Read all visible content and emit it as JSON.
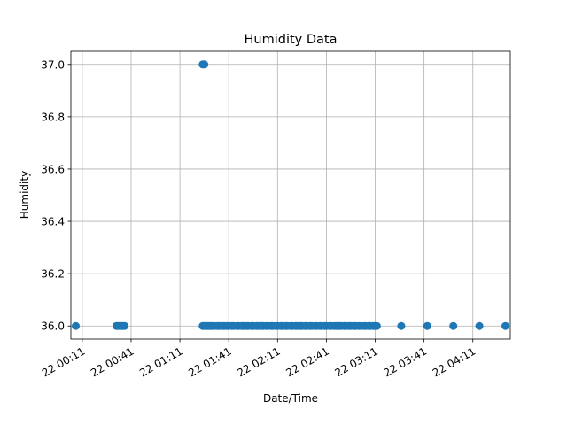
{
  "chart_data": {
    "type": "scatter",
    "title": "Humidity Data",
    "xlabel": "Date/Time",
    "ylabel": "Humidity",
    "ylim": [
      35.95,
      37.05
    ],
    "xlim": [
      "22 00:04",
      "22 04:34"
    ],
    "grid": true,
    "marker_color": "#1f77b4",
    "x_ticks": [
      "22 00:11",
      "22 00:41",
      "22 01:11",
      "22 01:41",
      "22 02:11",
      "22 02:41",
      "22 03:11",
      "22 03:41",
      "22 04:11"
    ],
    "y_ticks": [
      "36.0",
      "36.2",
      "36.4",
      "36.6",
      "36.8",
      "37.0"
    ],
    "x": [
      "22 00:07",
      "22 00:32",
      "22 00:33",
      "22 00:34",
      "22 00:35",
      "22 00:36",
      "22 00:37",
      "22 01:25",
      "22 01:26",
      "22 01:25",
      "22 01:26",
      "22 01:27",
      "22 01:28",
      "22 01:29",
      "22 01:30",
      "22 01:31",
      "22 01:32",
      "22 01:34",
      "22 01:35",
      "22 01:37",
      "22 01:38",
      "22 01:40",
      "22 01:41",
      "22 01:43",
      "22 01:44",
      "22 01:46",
      "22 01:47",
      "22 01:49",
      "22 01:50",
      "22 01:52",
      "22 01:53",
      "22 01:55",
      "22 01:56",
      "22 01:58",
      "22 01:59",
      "22 02:01",
      "22 02:02",
      "22 02:04",
      "22 02:05",
      "22 02:07",
      "22 02:08",
      "22 02:10",
      "22 02:11",
      "22 02:13",
      "22 02:14",
      "22 02:16",
      "22 02:17",
      "22 02:19",
      "22 02:20",
      "22 02:22",
      "22 02:23",
      "22 02:25",
      "22 02:26",
      "22 02:28",
      "22 02:29",
      "22 02:31",
      "22 02:32",
      "22 02:34",
      "22 02:35",
      "22 02:37",
      "22 02:38",
      "22 02:40",
      "22 02:41",
      "22 02:43",
      "22 02:44",
      "22 02:46",
      "22 02:47",
      "22 02:49",
      "22 02:50",
      "22 02:52",
      "22 02:53",
      "22 02:55",
      "22 02:56",
      "22 02:58",
      "22 02:59",
      "22 03:01",
      "22 03:02",
      "22 03:04",
      "22 03:05",
      "22 03:07",
      "22 03:08",
      "22 03:10",
      "22 03:11",
      "22 03:12",
      "22 03:27",
      "22 03:43",
      "22 03:59",
      "22 04:15",
      "22 04:31"
    ],
    "y": [
      36.0,
      36.0,
      36.0,
      36.0,
      36.0,
      36.0,
      36.0,
      37.0,
      37.0,
      36.0,
      36.0,
      36.0,
      36.0,
      36.0,
      36.0,
      36.0,
      36.0,
      36.0,
      36.0,
      36.0,
      36.0,
      36.0,
      36.0,
      36.0,
      36.0,
      36.0,
      36.0,
      36.0,
      36.0,
      36.0,
      36.0,
      36.0,
      36.0,
      36.0,
      36.0,
      36.0,
      36.0,
      36.0,
      36.0,
      36.0,
      36.0,
      36.0,
      36.0,
      36.0,
      36.0,
      36.0,
      36.0,
      36.0,
      36.0,
      36.0,
      36.0,
      36.0,
      36.0,
      36.0,
      36.0,
      36.0,
      36.0,
      36.0,
      36.0,
      36.0,
      36.0,
      36.0,
      36.0,
      36.0,
      36.0,
      36.0,
      36.0,
      36.0,
      36.0,
      36.0,
      36.0,
      36.0,
      36.0,
      36.0,
      36.0,
      36.0,
      36.0,
      36.0,
      36.0,
      36.0,
      36.0,
      36.0,
      36.0,
      36.0,
      36.0,
      36.0,
      36.0,
      36.0,
      36.0
    ]
  }
}
